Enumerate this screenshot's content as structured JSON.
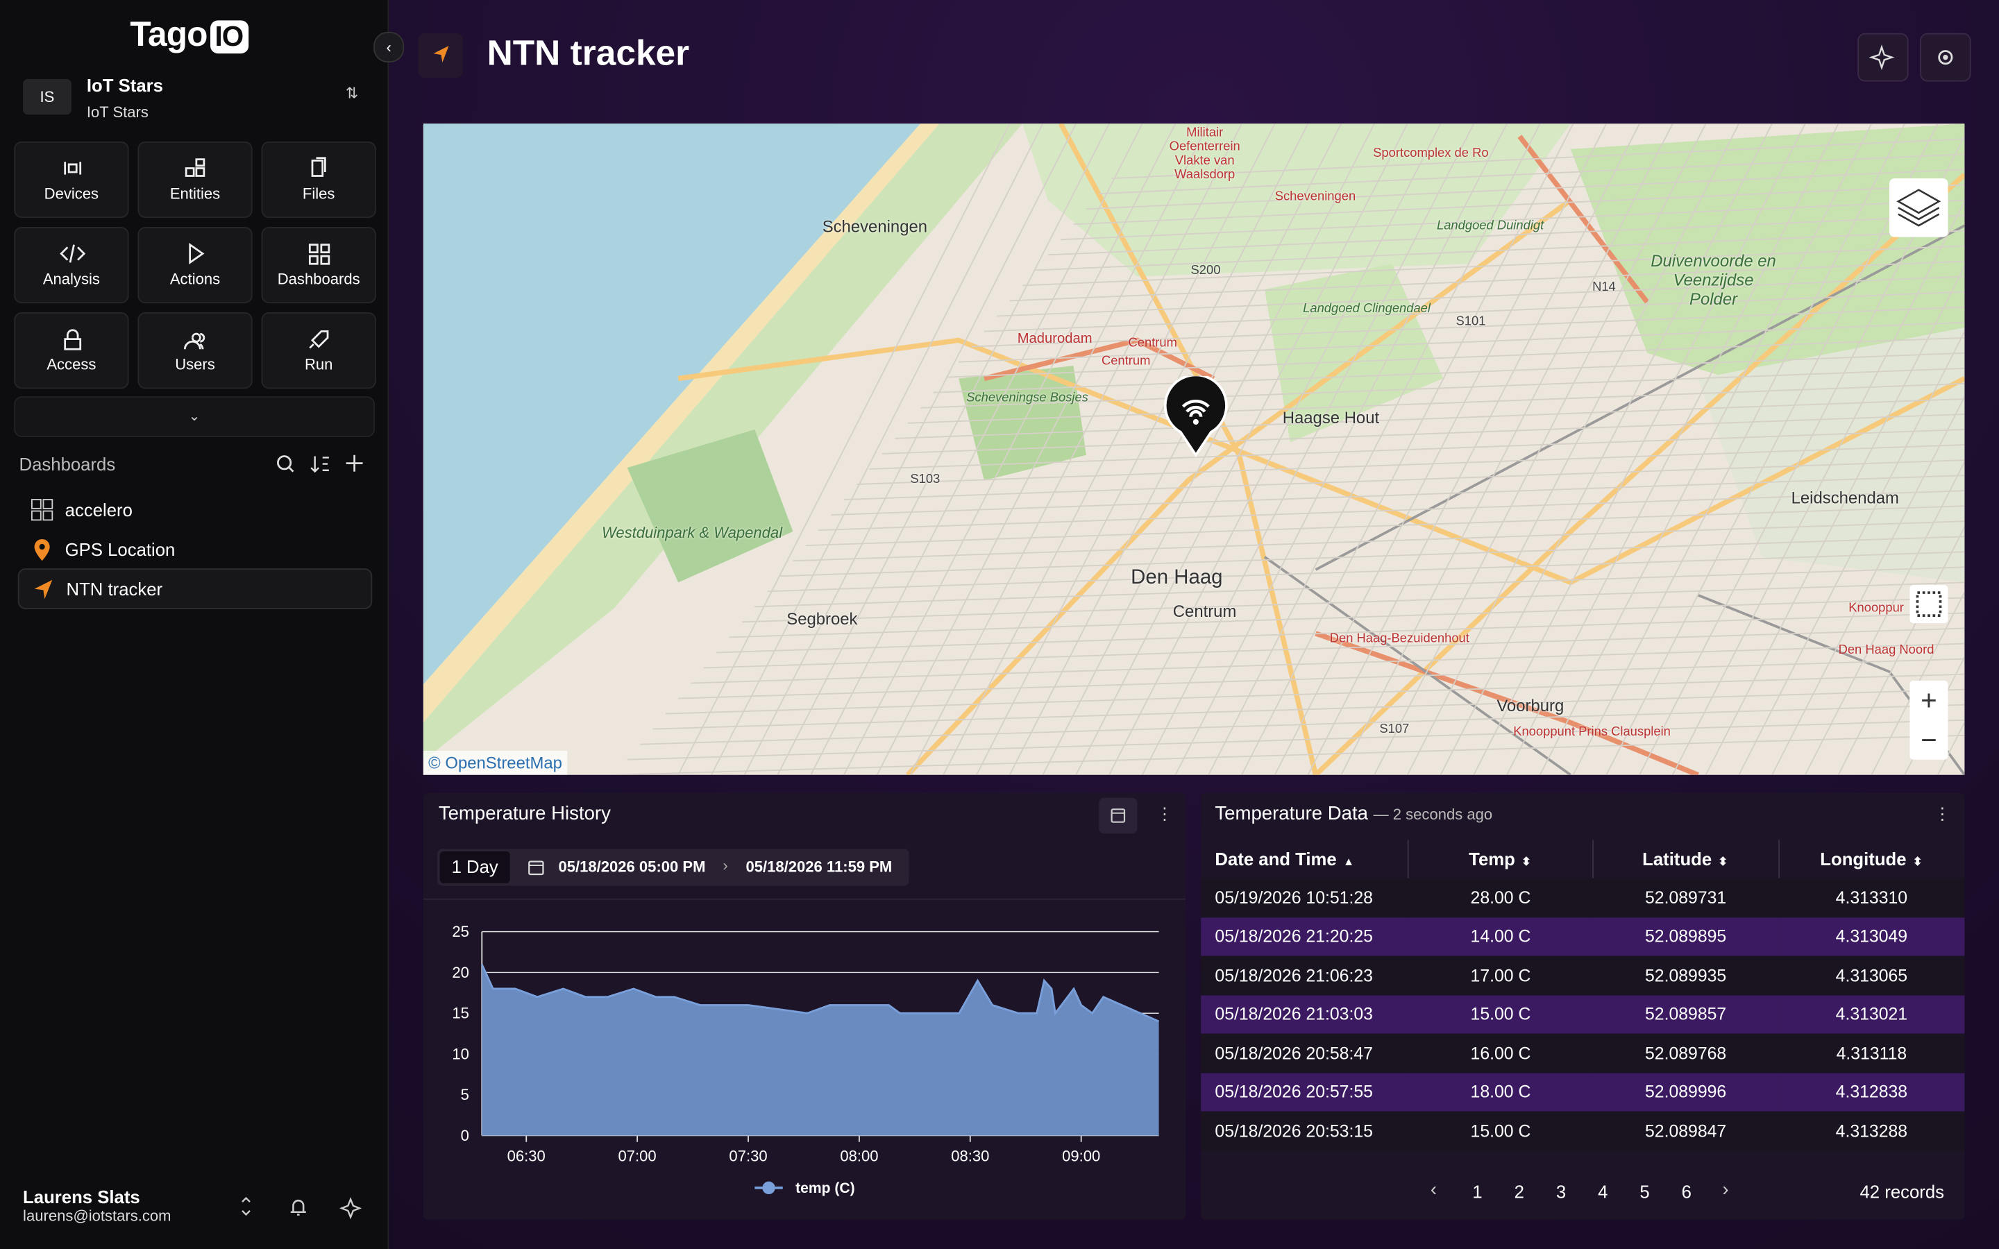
{
  "sidebar": {
    "logo": "Tago",
    "logo_badge": "IO",
    "org": {
      "initials": "IS",
      "name": "IoT Stars",
      "sub": "IoT Stars"
    },
    "nav": [
      "Devices",
      "Entities",
      "Files",
      "Analysis",
      "Actions",
      "Dashboards",
      "Access",
      "Users",
      "Run"
    ],
    "section": "Dashboards",
    "dashboards": [
      "accelero",
      "GPS Location",
      "NTN tracker"
    ],
    "user": {
      "name": "Laurens Slats",
      "email": "laurens@iotstars.com"
    }
  },
  "header": {
    "title": "NTN tracker"
  },
  "map": {
    "attribution": "© OpenStreetMap",
    "labels": [
      "Scheveningen",
      "Militair Oefenterrein Vlakte van Waalsdorp",
      "Sportcomplex de Ro",
      "Scheveningen",
      "Landgoed Duindigt",
      "Duivenvoorde en Veenzijdse Polder",
      "N14",
      "S200",
      "S101",
      "Landgoed Clingendael",
      "Madurodam",
      "Centrum",
      "Centrum",
      "Scheveningse Bosjes",
      "Haagse Hout",
      "S103",
      "Westduinpark & Wapendal",
      "Leidschendam",
      "Den Haag",
      "Centrum",
      "Segbroek",
      "Den Haag-Bezuidenhout",
      "Voorburg",
      "S107",
      "Knooppunt Prins Clausplein",
      "Den Haag Noord",
      "Knooppur"
    ]
  },
  "chart_data": {
    "type": "area",
    "title": "Temperature History",
    "range_button": "1 Day",
    "date_from": "05/18/2026 05:00 PM",
    "date_to": "05/18/2026 11:59 PM",
    "x": [
      "06:18",
      "06:21",
      "06:27",
      "06:33",
      "06:40",
      "06:46",
      "06:52",
      "06:59",
      "07:05",
      "07:10",
      "07:17",
      "07:30",
      "07:46",
      "07:52",
      "08:08",
      "08:11",
      "08:27",
      "08:32",
      "08:36",
      "08:43",
      "08:48",
      "08:50",
      "08:52",
      "08:53",
      "08:58",
      "09:00",
      "09:03",
      "09:06",
      "09:21"
    ],
    "series": [
      {
        "name": "temp (C)",
        "color": "#7aa0dc",
        "fill": "#6a8bbf",
        "values": [
          21,
          18,
          18,
          17,
          18,
          17,
          17,
          18,
          17,
          17,
          16,
          16,
          15,
          16,
          16,
          15,
          15,
          19,
          16,
          15,
          15,
          19,
          18,
          15,
          18,
          16,
          15,
          17,
          14
        ]
      }
    ],
    "xlim": [
      "06:18",
      "09:21"
    ],
    "xticks": [
      "06:30",
      "07:00",
      "07:30",
      "08:00",
      "08:30",
      "09:00"
    ],
    "ylim": [
      0,
      25
    ],
    "yticks": [
      0,
      5,
      10,
      15,
      20,
      25
    ],
    "grid": true
  },
  "table": {
    "title": "Temperature Data",
    "subtitle": "— 2 seconds ago",
    "columns": [
      "Date and Time",
      "Temp",
      "Latitude",
      "Longitude"
    ],
    "rows": [
      [
        "05/19/2026 10:51:28",
        "28.00 C",
        "52.089731",
        "4.313310"
      ],
      [
        "05/18/2026 21:20:25",
        "14.00 C",
        "52.089895",
        "4.313049"
      ],
      [
        "05/18/2026 21:06:23",
        "17.00 C",
        "52.089935",
        "4.313065"
      ],
      [
        "05/18/2026 21:03:03",
        "15.00 C",
        "52.089857",
        "4.313021"
      ],
      [
        "05/18/2026 20:58:47",
        "16.00 C",
        "52.089768",
        "4.313118"
      ],
      [
        "05/18/2026 20:57:55",
        "18.00 C",
        "52.089996",
        "4.312838"
      ],
      [
        "05/18/2026 20:53:15",
        "15.00 C",
        "52.089847",
        "4.313288"
      ]
    ],
    "pages": [
      "1",
      "2",
      "3",
      "4",
      "5",
      "6"
    ],
    "records": "42 records"
  }
}
